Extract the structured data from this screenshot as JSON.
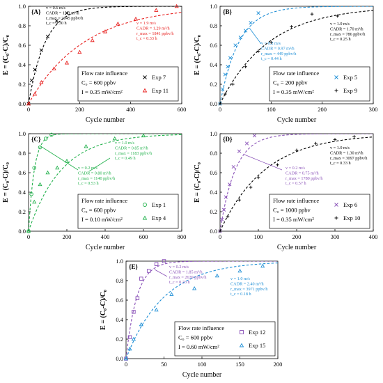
{
  "chart_data": [
    {
      "panel": "{A}",
      "type": "scatter",
      "xlabel": "Cycle number",
      "ylabel": "E = (C₀-C)/C₀",
      "xlim": [
        0,
        600
      ],
      "ylim": [
        0,
        1.0
      ],
      "xticks": [
        "0",
        "200",
        "400",
        "600"
      ],
      "yticks": [
        "0.0",
        "0.2",
        "0.4",
        "0.6",
        "0.8",
        "1.0"
      ],
      "legend": {
        "position": "bottom-right",
        "lines": [
          "Flow rate influence",
          "C₀ = 600 ppbv",
          "I = 0.35  mW/cm²"
        ]
      },
      "series": [
        {
          "name": "Exp 7",
          "marker": "x",
          "color": "#000000",
          "k": 0.0153,
          "x": [
            0,
            12,
            25,
            50,
            75,
            110,
            150
          ],
          "y": [
            0.0,
            0.24,
            0.35,
            0.55,
            0.69,
            0.85,
            0.93
          ]
        },
        {
          "name": "Exp 11",
          "marker": "triangle",
          "color": "#e8201f",
          "k": 0.0046,
          "x": [
            0,
            25,
            50,
            100,
            150,
            200,
            250,
            300,
            350,
            420,
            500,
            580
          ],
          "y": [
            0.0,
            0.1,
            0.22,
            0.36,
            0.42,
            0.53,
            0.65,
            0.74,
            0.82,
            0.87,
            0.96,
            1.0
          ]
        }
      ],
      "annotations": [
        {
          "color": "#000000",
          "lines": [
            "v = 0.6 m/s",
            "CADR = 1.43 m³/h",
            "r_max = 2045 ppbv/h",
            "t_c = 0.30 h"
          ]
        },
        {
          "color": "#e8201f",
          "lines": [
            "v = 1.9 m/s",
            "CADR = 1.29 m³/h",
            "r_max = 1841 ppbv/h",
            "t_c = 0.33 h"
          ]
        }
      ]
    },
    {
      "panel": "{B}",
      "type": "scatter",
      "xlabel": "Cycle number",
      "ylabel": "E = (C₀-C)/C₀",
      "xlim": [
        0,
        300
      ],
      "ylim": [
        0,
        1.0
      ],
      "xticks": [
        "0",
        "100",
        "200",
        "300"
      ],
      "yticks": [
        "0.0",
        "0.2",
        "0.4",
        "0.6",
        "0.8",
        "1.0"
      ],
      "legend": {
        "position": "bottom-right",
        "lines": [
          "Flow rate influence",
          "C₀ = 200 ppbv",
          "I = 0.35  mW/cm²"
        ]
      },
      "series": [
        {
          "name": "Exp 5",
          "marker": "x",
          "color": "#1f8fd6",
          "k": 0.027,
          "x": [
            0,
            5,
            10,
            15,
            20,
            30,
            40,
            50,
            60,
            75
          ],
          "y": [
            0.0,
            0.15,
            0.3,
            0.38,
            0.47,
            0.6,
            0.68,
            0.75,
            0.83,
            0.93
          ]
        },
        {
          "name": "Exp 9",
          "marker": "plus",
          "color": "#000000",
          "k": 0.0105,
          "x": [
            0,
            10,
            25,
            50,
            75,
            100,
            140,
            180,
            230
          ],
          "y": [
            0.0,
            0.1,
            0.2,
            0.38,
            0.54,
            0.63,
            0.79,
            0.92,
            0.9
          ]
        }
      ],
      "annotations": [
        {
          "color": "#000000",
          "lines": [
            "v = 1.0 m/s",
            "CADR = 1.70 m³/h",
            "r_max = 786 ppbv/h",
            "t_c = 0.25 h"
          ]
        },
        {
          "color": "#1f8fd6",
          "lines": [
            "v = 0.2 m/s",
            "CADR = 0.97 m³/h",
            "r_max = 449 ppbv/h",
            "t_c = 0.44 h"
          ]
        }
      ]
    },
    {
      "panel": "{C}",
      "type": "scatter",
      "xlabel": "Cycle number",
      "ylabel": "E = (C₀-C)/C₀",
      "xlim": [
        0,
        800
      ],
      "ylim": [
        0,
        1.0
      ],
      "xticks": [
        "0",
        "200",
        "400",
        "600",
        "800"
      ],
      "yticks": [
        "0.0",
        "0.2",
        "0.4",
        "0.6",
        "0.8",
        "1.0"
      ],
      "legend": {
        "position": "bottom-right",
        "lines": [
          "Flow rate influence",
          "C₀ = 600 ppbv",
          "I = 0.10  mW/cm²"
        ]
      },
      "series": [
        {
          "name": "Exp 1",
          "marker": "circle",
          "color": "#22b14c",
          "k": 0.033,
          "x": [
            0,
            15,
            30,
            60,
            90,
            120
          ],
          "y": [
            0.0,
            0.38,
            0.65,
            0.86,
            0.95,
            0.99
          ]
        },
        {
          "name": "Exp 4",
          "marker": "triangle",
          "color": "#22b14c",
          "k": 0.0058,
          "x": [
            0,
            30,
            60,
            100,
            150,
            200,
            300,
            450,
            600
          ],
          "y": [
            0.0,
            0.3,
            0.48,
            0.6,
            0.65,
            0.72,
            0.87,
            0.95,
            0.98
          ]
        }
      ],
      "annotations": [
        {
          "color": "#22b14c",
          "lines": [
            "v = 1.0 m/s",
            "CADR = 0.85 m³/h",
            "r_max = 1183 ppbv/h",
            "t_c = 0.49 h"
          ]
        },
        {
          "color": "#22b14c",
          "lines": [
            "v = 0.2 m/s",
            "CADR = 0.80 m³/h",
            "r_max = 1140 ppbv/h",
            "t_c = 0.53 h"
          ]
        }
      ]
    },
    {
      "panel": "{D}",
      "type": "scatter",
      "xlabel": "Cycle number",
      "ylabel": "E = (C₀-C)/C₀",
      "xlim": [
        0,
        400
      ],
      "ylim": [
        0,
        1.0
      ],
      "xticks": [
        "0",
        "100",
        "200",
        "300",
        "400"
      ],
      "yticks": [
        "0.0",
        "0.2",
        "0.4",
        "0.6",
        "0.8",
        "1.0"
      ],
      "legend": {
        "position": "bottom-right",
        "lines": [
          "Flow rate influence",
          "C₀ = 1000 ppbv",
          "I = 0.35  mW/cm²"
        ]
      },
      "series": [
        {
          "name": "Exp 6",
          "marker": "x",
          "color": "#8a52b8",
          "k": 0.025,
          "x": [
            0,
            5,
            10,
            15,
            25,
            35,
            50,
            70,
            90
          ],
          "y": [
            0.0,
            0.12,
            0.22,
            0.35,
            0.48,
            0.66,
            0.82,
            0.9,
            0.98
          ]
        },
        {
          "name": "Exp 10",
          "marker": "plus",
          "color": "#000000",
          "k": 0.0085,
          "x": [
            0,
            20,
            50,
            80,
            100,
            150,
            200,
            250,
            300,
            350
          ],
          "y": [
            0.0,
            0.15,
            0.32,
            0.45,
            0.55,
            0.68,
            0.83,
            0.9,
            0.94,
            0.97
          ]
        }
      ],
      "annotations": [
        {
          "color": "#000000",
          "lines": [
            "v = 1.0 m/s",
            "CADR = 1.30 m³/h",
            "r_max = 3097 ppbv/h",
            "t_c = 0.33 h"
          ]
        },
        {
          "color": "#8a52b8",
          "lines": [
            "v = 0.2 m/s",
            "CADR = 0.75 m³/h",
            "r_max = 1780 ppbv/h",
            "t_c = 0.57 h"
          ]
        }
      ]
    },
    {
      "panel": "{E}",
      "type": "scatter",
      "xlabel": "Cycle number",
      "ylabel": "E = (C₀-C)/C₀",
      "xlim": [
        0,
        200
      ],
      "ylim": [
        0,
        1.0
      ],
      "xticks": [
        "0",
        "50",
        "100",
        "150",
        "200"
      ],
      "yticks": [
        "0.0",
        "0.2",
        "0.4",
        "0.6",
        "0.8",
        "1.0"
      ],
      "legend": {
        "position": "bottom-right",
        "lines": [
          "Flow rate influence",
          "C₀ = 600 ppbv",
          "I = 0.60  mW/cm²"
        ]
      },
      "series": [
        {
          "name": "Exp 12",
          "marker": "square",
          "color": "#8a52b8",
          "k": 0.07,
          "x": [
            0,
            5,
            10,
            15,
            20,
            30,
            40,
            50
          ],
          "y": [
            0.0,
            0.22,
            0.48,
            0.62,
            0.82,
            0.9,
            0.97,
            1.0
          ]
        },
        {
          "name": "Exp 15",
          "marker": "triangle",
          "color": "#1f8fd6",
          "k": 0.02,
          "x": [
            0,
            5,
            10,
            20,
            40,
            60,
            90,
            120,
            150,
            180
          ],
          "y": [
            0.0,
            0.1,
            0.2,
            0.35,
            0.5,
            0.66,
            0.72,
            0.85,
            0.9,
            0.95
          ]
        }
      ],
      "annotations": [
        {
          "color": "#8a52b8",
          "lines": [
            "v = 0.2 m/s",
            "CADR = 1.85 m³/h",
            "r_max = 2639 ppbv/h",
            "t_c = 0.23 h"
          ]
        },
        {
          "color": "#1f8fd6",
          "lines": [
            "v = 1.0 m/s",
            "CADR = 2.40 m³/h",
            "r_max = 3971 ppbv/h",
            "t_c = 0.18 h"
          ]
        }
      ]
    }
  ]
}
